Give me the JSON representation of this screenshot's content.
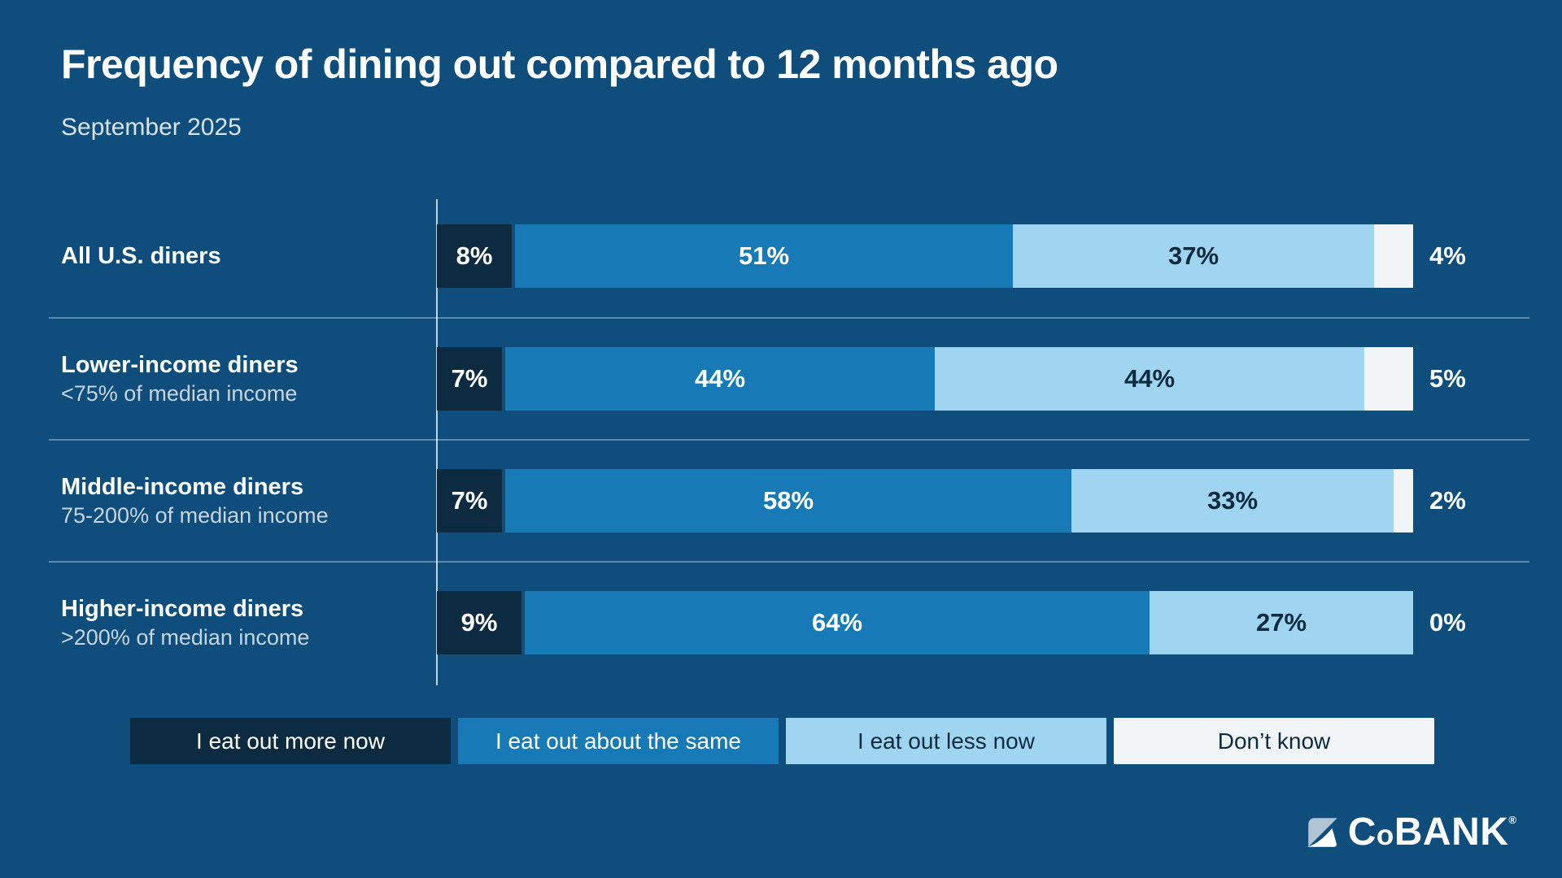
{
  "title": "Frequency of dining out compared to 12 months ago",
  "subtitle": "September 2025",
  "colors": {
    "background": "#0E4D7C",
    "more_now": "#0D2B40",
    "about_same": "#1779B5",
    "less_now": "#A0D5F2",
    "dont_know": "#F2F5F7",
    "divider": "rgba(255,255,255,0.34)",
    "axis_line": "rgba(255,255,255,0.75)",
    "label_on_dark": "#FFFFFF",
    "label_on_light": "#0D2B40",
    "sublabel_text": "#C7D5E1"
  },
  "chart_data": {
    "type": "bar",
    "orientation": "horizontal-stacked",
    "title": "Frequency of dining out compared to 12 months ago",
    "subtitle": "September 2025",
    "value_format": "percent",
    "xlim": [
      0,
      100
    ],
    "grid": false,
    "legend_position": "bottom",
    "categories": [
      "All U.S. diners",
      "Lower-income diners",
      "Middle-income diners",
      "Higher-income diners"
    ],
    "category_sublabels": [
      "",
      "<75% of median income",
      "75-200% of median income",
      ">200% of median income"
    ],
    "series": [
      {
        "name": "I eat out more now",
        "color": "#0D2B40",
        "label_color": "#FFFFFF",
        "values": [
          8,
          7,
          7,
          9
        ]
      },
      {
        "name": "I eat out about the same",
        "color": "#1779B5",
        "label_color": "#FFFFFF",
        "values": [
          51,
          44,
          58,
          64
        ]
      },
      {
        "name": "I eat out less now",
        "color": "#A0D5F2",
        "label_color": "#0D2B40",
        "values": [
          37,
          44,
          33,
          27
        ]
      },
      {
        "name": "Don't know",
        "color": "#F2F5F7",
        "label_color": "#FFFFFF",
        "values": [
          4,
          5,
          2,
          0
        ]
      }
    ]
  },
  "legend": [
    {
      "label": "I eat out more now",
      "color": "#0D2B40",
      "text_color": "#FFFFFF"
    },
    {
      "label": "I eat out about the same",
      "color": "#1779B5",
      "text_color": "#FFFFFF"
    },
    {
      "label": "I eat out less now",
      "color": "#A0D5F2",
      "text_color": "#0D2B40"
    },
    {
      "label": "Don’t know",
      "color": "#F2F5F7",
      "text_color": "#0D2B40"
    }
  ],
  "logo": {
    "prefix": "C",
    "o": "o",
    "suffix": "BANK",
    "registered": "®"
  }
}
